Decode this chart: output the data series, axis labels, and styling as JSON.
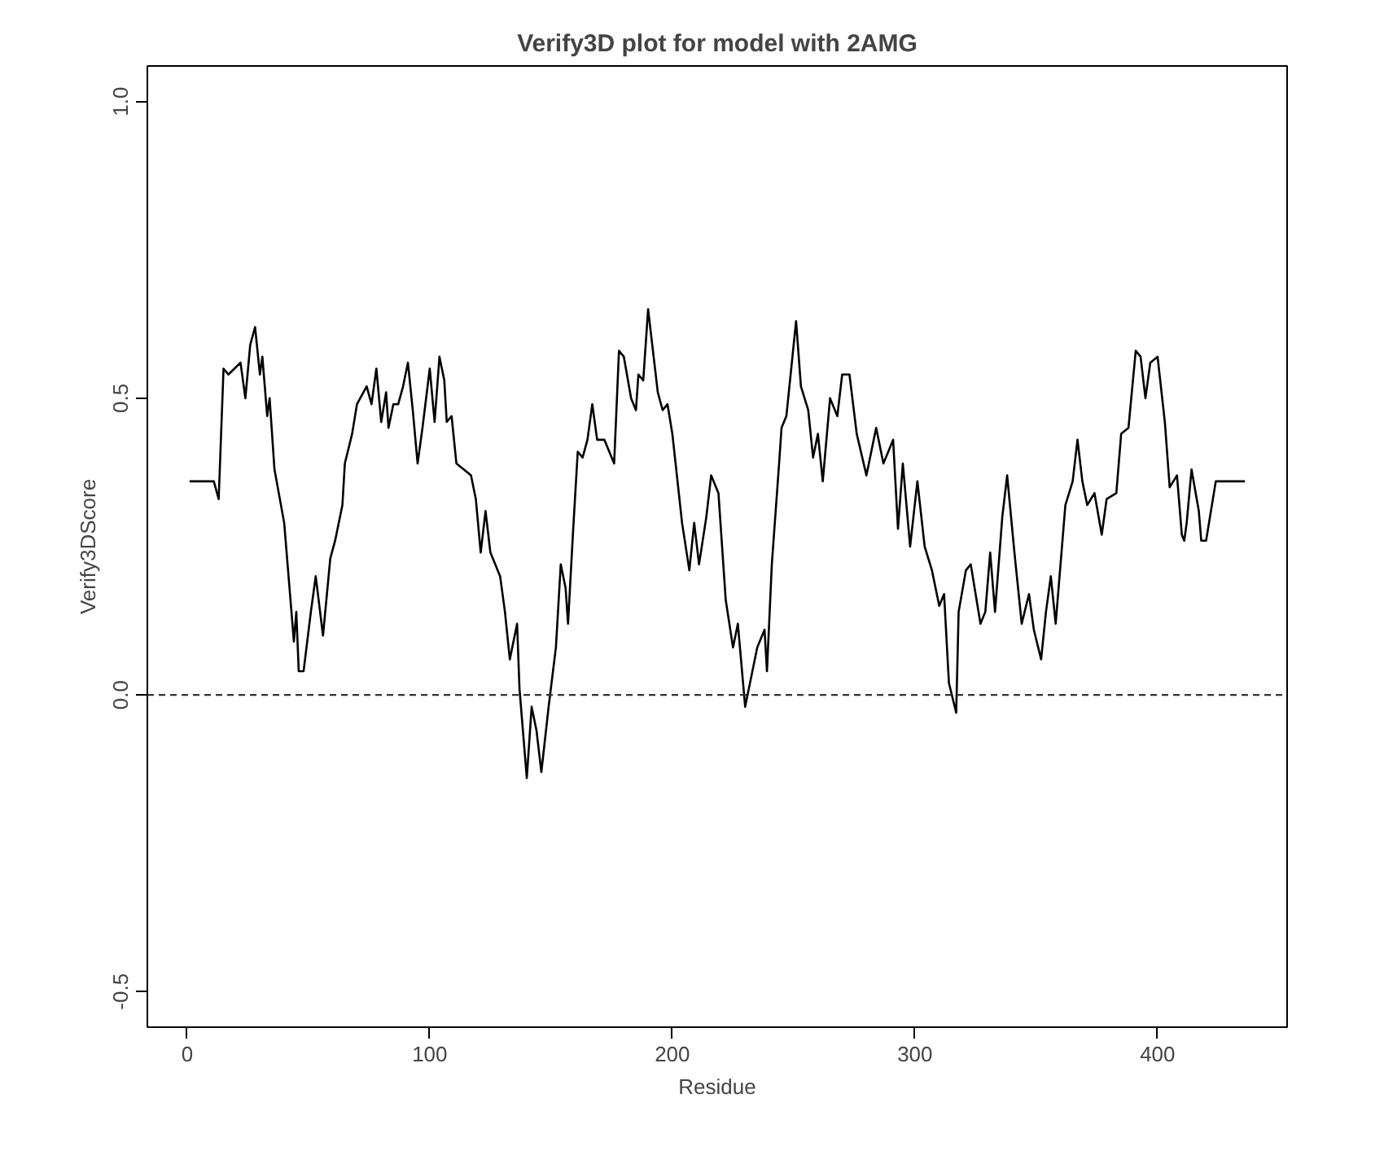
{
  "chart_data": {
    "type": "line",
    "title": "Verify3D plot for model with 2AMG",
    "xlabel": "Residue",
    "ylabel": "Verify3DScore",
    "xlim": [
      -16.4,
      453.4
    ],
    "ylim": [
      -0.56,
      1.06
    ],
    "xticks": [
      0,
      100,
      200,
      300,
      400
    ],
    "yticks": [
      {
        "value": -0.5,
        "label": "-0.5"
      },
      {
        "value": 0,
        "label": "0.0"
      },
      {
        "value": 0.5,
        "label": "0.5"
      },
      {
        "value": 1.0,
        "label": "1.0"
      }
    ],
    "grid": false,
    "marker": "none",
    "line_style": "solid",
    "ref_lines": [
      {
        "axis": "y",
        "value": 0,
        "label": null,
        "line_style": "dashed"
      }
    ],
    "series": [
      {
        "color": "#000000",
        "x": [
          1,
          11,
          13,
          15,
          17,
          22,
          24,
          26,
          28,
          30,
          31,
          33,
          34,
          36,
          40,
          44,
          45,
          46,
          48,
          51,
          53,
          56,
          59,
          61,
          64,
          65,
          68,
          70,
          74,
          76,
          78,
          80,
          82,
          83,
          85,
          87,
          89,
          91,
          93,
          95,
          97,
          100,
          102,
          104,
          106,
          107,
          109,
          111,
          114,
          117,
          119,
          121,
          123,
          125,
          127,
          129,
          131,
          133,
          136,
          137,
          140,
          142,
          144,
          146,
          149,
          152,
          154,
          156,
          157,
          159,
          161,
          163,
          165,
          167,
          169,
          172,
          176,
          178,
          180,
          183,
          185,
          186,
          188,
          190,
          194,
          196,
          198,
          200,
          204,
          207,
          209,
          211,
          214,
          216,
          219,
          222,
          225,
          227,
          230,
          232,
          235,
          238,
          239,
          241,
          244,
          245,
          247,
          251,
          253,
          256,
          258,
          260,
          262,
          265,
          268,
          270,
          273,
          276,
          280,
          284,
          287,
          291,
          293,
          295,
          298,
          301,
          304,
          307,
          310,
          312,
          314,
          317,
          318,
          321,
          323,
          327,
          329,
          331,
          333,
          336,
          338,
          341,
          344,
          347,
          349,
          352,
          354,
          356,
          358,
          362,
          365,
          367,
          369,
          371,
          374,
          377,
          379,
          383,
          385,
          388,
          391,
          393,
          395,
          397,
          400,
          403,
          405,
          408,
          410,
          411,
          412,
          414,
          417,
          418,
          420,
          424,
          436
        ],
        "values": [
          0.36,
          0.36,
          0.33,
          0.55,
          0.54,
          0.56,
          0.5,
          0.59,
          0.62,
          0.54,
          0.57,
          0.47,
          0.5,
          0.38,
          0.29,
          0.09,
          0.14,
          0.04,
          0.04,
          0.14,
          0.2,
          0.1,
          0.23,
          0.26,
          0.32,
          0.39,
          0.44,
          0.49,
          0.52,
          0.49,
          0.55,
          0.46,
          0.51,
          0.45,
          0.49,
          0.49,
          0.52,
          0.56,
          0.48,
          0.39,
          0.45,
          0.55,
          0.46,
          0.57,
          0.53,
          0.46,
          0.47,
          0.39,
          0.38,
          0.37,
          0.33,
          0.24,
          0.31,
          0.24,
          0.22,
          0.2,
          0.14,
          0.06,
          0.12,
          0.01,
          -0.14,
          -0.02,
          -0.06,
          -0.13,
          -0.02,
          0.08,
          0.22,
          0.18,
          0.12,
          0.27,
          0.41,
          0.4,
          0.43,
          0.49,
          0.43,
          0.43,
          0.39,
          0.58,
          0.57,
          0.5,
          0.48,
          0.54,
          0.53,
          0.65,
          0.51,
          0.48,
          0.49,
          0.44,
          0.29,
          0.21,
          0.29,
          0.22,
          0.3,
          0.37,
          0.34,
          0.16,
          0.08,
          0.12,
          -0.02,
          0.02,
          0.08,
          0.11,
          0.04,
          0.22,
          0.39,
          0.45,
          0.47,
          0.63,
          0.52,
          0.48,
          0.4,
          0.44,
          0.36,
          0.5,
          0.47,
          0.54,
          0.54,
          0.44,
          0.37,
          0.45,
          0.39,
          0.43,
          0.28,
          0.39,
          0.25,
          0.36,
          0.25,
          0.21,
          0.15,
          0.17,
          0.02,
          -0.03,
          0.14,
          0.21,
          0.22,
          0.12,
          0.14,
          0.24,
          0.14,
          0.3,
          0.37,
          0.24,
          0.12,
          0.17,
          0.11,
          0.06,
          0.14,
          0.2,
          0.12,
          0.32,
          0.36,
          0.43,
          0.36,
          0.32,
          0.34,
          0.27,
          0.33,
          0.34,
          0.44,
          0.45,
          0.58,
          0.57,
          0.5,
          0.56,
          0.57,
          0.46,
          0.35,
          0.37,
          0.27,
          0.26,
          0.29,
          0.38,
          0.31,
          0.26,
          0.26,
          0.36,
          0.36
        ]
      }
    ]
  }
}
